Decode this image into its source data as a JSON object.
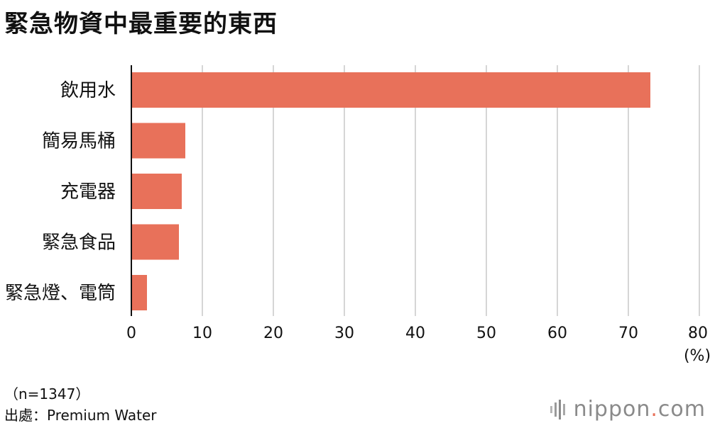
{
  "title": "緊急物資中最重要的東西",
  "note": "（n=1347）",
  "source": "出處：Premium Water",
  "logo": {
    "name": "nippon",
    "dot": ".",
    "suffix": "com",
    "icon": "sound-bars-icon"
  },
  "colors": {
    "bar": "#e8715a",
    "grid": "#c9c9c9",
    "axis": "#111111",
    "text": "#111111"
  },
  "chart_data": {
    "type": "bar",
    "orientation": "horizontal",
    "categories": [
      "飲用水",
      "簡易馬桶",
      "充電器",
      "緊急食品",
      "緊急燈、電筒"
    ],
    "values": [
      73.1,
      7.6,
      7.1,
      6.7,
      2.2
    ],
    "xlim": [
      0,
      80
    ],
    "xticks": [
      "0",
      "10",
      "20",
      "30",
      "40",
      "50",
      "60",
      "70",
      "80"
    ],
    "unit": "(%)",
    "grid": true
  }
}
